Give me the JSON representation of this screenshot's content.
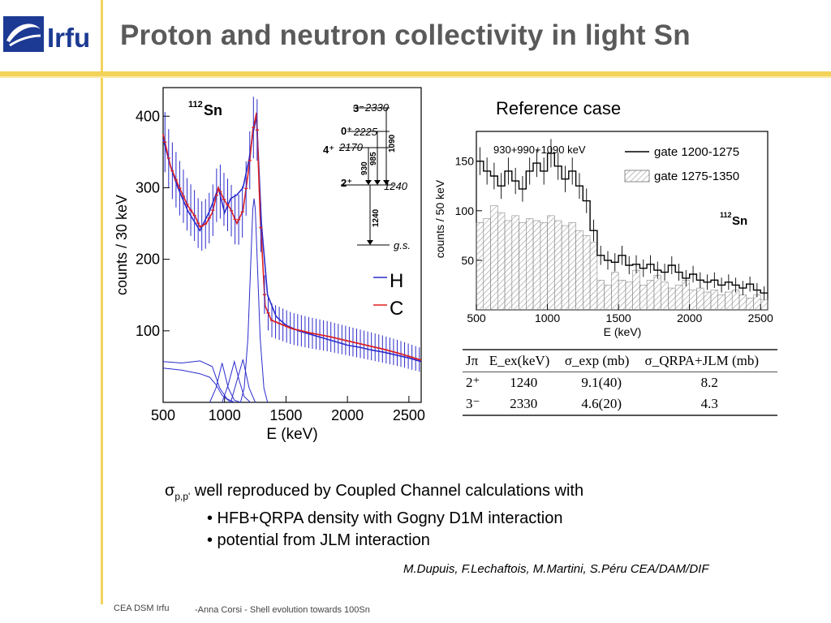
{
  "header": {
    "logo_text": "Irfu",
    "title": "Proton and neutron collectivity in light Sn"
  },
  "left_chart": {
    "type": "line",
    "isotope_mass": "112",
    "isotope_symbol": "Sn",
    "xlabel": "E (keV)",
    "ylabel": "counts / 30 keV",
    "x_ticks": [
      500,
      1000,
      1500,
      2000,
      2500
    ],
    "y_ticks": [
      100,
      200,
      300,
      400
    ],
    "xlim": [
      500,
      2600
    ],
    "ylim": [
      0,
      440
    ],
    "legend": [
      {
        "label": "H",
        "color": "#2b2bcc"
      },
      {
        "label": "C",
        "color": "#e0201f"
      }
    ],
    "series": [
      {
        "name": "H",
        "color": "#2b2bcc",
        "x": [
          500,
          560,
          620,
          700,
          800,
          880,
          950,
          1000,
          1050,
          1100,
          1150,
          1200,
          1230,
          1260,
          1300,
          1350,
          1420,
          1500,
          1600,
          1700,
          1800,
          1900,
          2000,
          2100,
          2200,
          2300,
          2400,
          2500,
          2600
        ],
        "y": [
          368,
          330,
          300,
          268,
          240,
          268,
          300,
          265,
          285,
          290,
          300,
          340,
          375,
          400,
          250,
          150,
          120,
          108,
          100,
          95,
          90,
          85,
          80,
          77,
          73,
          70,
          66,
          62,
          57
        ]
      },
      {
        "name": "C",
        "color": "#e0201f",
        "x": [
          500,
          560,
          620,
          700,
          760,
          800,
          850,
          900,
          950,
          1000,
          1050,
          1100,
          1150,
          1200,
          1230,
          1260,
          1290,
          1330,
          1380,
          1450,
          1550,
          1700,
          1850,
          2000,
          2150,
          2300,
          2450,
          2600
        ],
        "y": [
          375,
          330,
          305,
          275,
          260,
          245,
          250,
          265,
          300,
          282,
          270,
          250,
          268,
          330,
          380,
          405,
          260,
          135,
          115,
          110,
          103,
          97,
          92,
          86,
          80,
          74,
          67,
          59
        ]
      },
      {
        "name": "gauss-1240",
        "color": "#2b2bcc",
        "x": [
          1130,
          1160,
          1190,
          1210,
          1230,
          1240,
          1250,
          1270,
          1290,
          1320,
          1350
        ],
        "y": [
          0,
          20,
          90,
          180,
          270,
          285,
          270,
          180,
          90,
          20,
          0
        ]
      },
      {
        "name": "component-1",
        "color": "#2b2bcc",
        "x": [
          500,
          650,
          800,
          900,
          960,
          1020,
          1080
        ],
        "y": [
          57,
          55,
          58,
          50,
          20,
          5,
          0
        ]
      },
      {
        "name": "component-2",
        "color": "#2b2bcc",
        "x": [
          500,
          650,
          800,
          880,
          930,
          980,
          1050
        ],
        "y": [
          48,
          45,
          40,
          35,
          25,
          10,
          0
        ]
      },
      {
        "name": "component-3",
        "color": "#2b2bcc",
        "x": [
          880,
          930,
          980,
          1030,
          1080,
          1130
        ],
        "y": [
          0,
          20,
          55,
          20,
          3,
          0
        ]
      },
      {
        "name": "component-4",
        "color": "#2b2bcc",
        "x": [
          980,
          1030,
          1080,
          1120,
          1160,
          1210
        ],
        "y": [
          0,
          25,
          57,
          30,
          8,
          0
        ]
      },
      {
        "name": "component-5",
        "color": "#2b2bcc",
        "x": [
          1050,
          1100,
          1150,
          1200,
          1250
        ],
        "y": [
          0,
          30,
          60,
          20,
          0
        ]
      }
    ],
    "level_scheme": {
      "levels": [
        {
          "jpi": "3⁻",
          "energy": "2330"
        },
        {
          "jpi": "0⁺",
          "energy": "2225"
        },
        {
          "jpi": "4⁺",
          "energy": "2170"
        },
        {
          "jpi": "2⁺",
          "energy": "1240"
        },
        {
          "jpi": "",
          "energy": "g.s."
        }
      ],
      "transitions": [
        "1090",
        "985",
        "930",
        "1240"
      ]
    }
  },
  "reference": {
    "label": "Reference case",
    "chart": {
      "type": "bar",
      "isotope_mass": "112",
      "isotope_symbol": "Sn",
      "annotation": "930+990+1090 keV",
      "xlabel": "E (keV)",
      "ylabel": "counts / 50 keV",
      "x_ticks": [
        500,
        1000,
        1500,
        2000,
        2500
      ],
      "y_ticks": [
        50,
        100,
        150
      ],
      "xlim": [
        500,
        2550
      ],
      "ylim": [
        0,
        180
      ],
      "legend": [
        {
          "label": "gate 1200-1275",
          "style": "line"
        },
        {
          "label": "gate 1275-1350",
          "style": "hatched"
        }
      ],
      "series": [
        {
          "name": "gate 1200-1275",
          "x": [
            500,
            550,
            600,
            650,
            700,
            750,
            800,
            850,
            900,
            950,
            1000,
            1050,
            1100,
            1150,
            1200,
            1250,
            1300,
            1350,
            1400,
            1450,
            1500,
            1550,
            1600,
            1650,
            1700,
            1750,
            1800,
            1850,
            1900,
            1950,
            2000,
            2050,
            2100,
            2150,
            2200,
            2250,
            2300,
            2350,
            2400,
            2450,
            2500
          ],
          "y": [
            150,
            140,
            135,
            125,
            140,
            130,
            122,
            140,
            148,
            140,
            158,
            145,
            132,
            140,
            125,
            110,
            80,
            55,
            50,
            48,
            55,
            45,
            46,
            42,
            46,
            40,
            38,
            45,
            38,
            32,
            36,
            30,
            28,
            30,
            25,
            28,
            25,
            22,
            26,
            20,
            17
          ]
        },
        {
          "name": "gate 1275-1350",
          "x": [
            500,
            550,
            600,
            650,
            700,
            750,
            800,
            850,
            900,
            950,
            1000,
            1050,
            1100,
            1150,
            1200,
            1250,
            1300,
            1350,
            1400,
            1450,
            1500,
            1550,
            1600,
            1650,
            1700,
            1750,
            1800,
            1850,
            1900,
            1950,
            2000,
            2050,
            2100,
            2150,
            2200,
            2250,
            2300,
            2350,
            2400,
            2450,
            2500
          ],
          "y": [
            88,
            92,
            105,
            98,
            90,
            95,
            88,
            92,
            90,
            88,
            95,
            90,
            85,
            88,
            80,
            75,
            68,
            30,
            25,
            38,
            30,
            28,
            40,
            25,
            30,
            35,
            28,
            22,
            25,
            30,
            20,
            22,
            18,
            20,
            15,
            18,
            20,
            15,
            12,
            15,
            10
          ]
        }
      ]
    }
  },
  "table": {
    "headers": [
      "Jπ",
      "E_ex(keV)",
      "σ_exp (mb)",
      "σ_QRPA+JLM (mb)"
    ],
    "rows": [
      [
        "2⁺",
        "1240",
        "9.1(40)",
        "8.2"
      ],
      [
        "3⁻",
        "2330",
        "4.6(20)",
        "4.3"
      ]
    ]
  },
  "bullets": {
    "sigma": "σ",
    "subscript": "p,p'",
    "lead": "well reproduced by Coupled Channel calculations with",
    "items": [
      "• HFB+QRPA density with Gogny D1M interaction",
      "• potential from JLM interaction"
    ]
  },
  "authors": "M.Dupuis, F.Lechaftois, M.Martini, S.Péru CEA/DAM/DIF",
  "footer": {
    "org": "CEA DSM Irfu",
    "text": "-Anna Corsi -   Shell evolution towards 100Sn"
  }
}
